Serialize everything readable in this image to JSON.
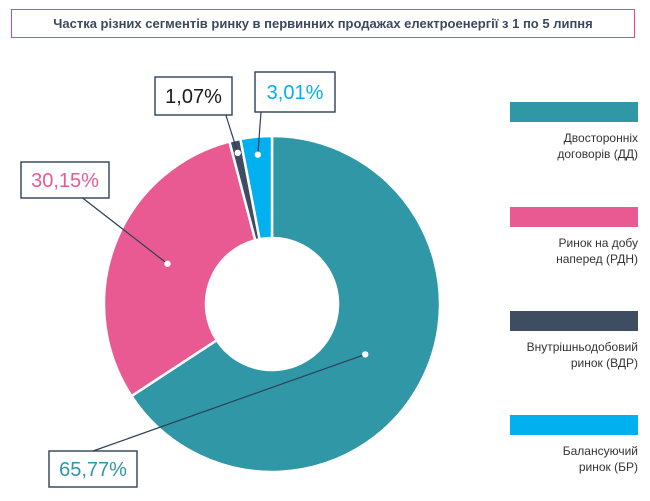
{
  "title": "Частка різних сегментів ринку в первинних продажах електроенергії з 1 по 5 липня",
  "colors": {
    "title_border": "#e0468f",
    "label_border": "#2e4057"
  },
  "chart_data": {
    "type": "pie",
    "donut": true,
    "categories": [
      "Двосторонніх договорів (ДД)",
      "Ринок на добу наперед (РДН)",
      "Внутрішньодобовий ринок (ВДР)",
      "Балансуючий ринок (БР)"
    ],
    "values": [
      65.77,
      30.15,
      1.07,
      3.01
    ],
    "labels": [
      "65,77%",
      "30,15%",
      "1,07%",
      "3,01%"
    ],
    "colors": [
      "#3097a6",
      "#ea5a92",
      "#3f4d63",
      "#00b0ef"
    ],
    "legend_placement": "right"
  },
  "legend": {
    "items": [
      {
        "label": "Двосторонніх\nдоговорів (ДД)",
        "color": "#3097a6"
      },
      {
        "label": "Ринок на добу\nнаперед (РДН)",
        "color": "#ea5a92"
      },
      {
        "label": "Внутрішньодобовий\nринок (ВДР)",
        "color": "#3f4d63"
      },
      {
        "label": "Балансуючий\nринок (БР)",
        "color": "#00b0ef"
      }
    ]
  }
}
